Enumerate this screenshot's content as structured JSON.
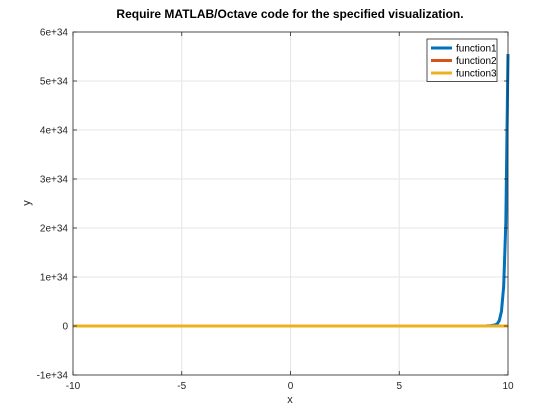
{
  "chart_data": {
    "type": "line",
    "title": "Require MATLAB/Octave code for the specified visualization.",
    "xlabel": "x",
    "ylabel": "y",
    "xlim": [
      -10,
      10
    ],
    "ylim": [
      -1e+34,
      6e+34
    ],
    "x_ticks": [
      -10,
      -5,
      0,
      5,
      10
    ],
    "x_tick_labels": [
      "-10",
      "-5",
      "0",
      "5",
      "10"
    ],
    "y_ticks": [
      -1e+34,
      0,
      1e+34,
      2e+34,
      3e+34,
      4e+34,
      5e+34,
      6e+34
    ],
    "y_tick_labels": [
      "-1e+34",
      "0",
      "1e+34",
      "2e+34",
      "3e+34",
      "4e+34",
      "5e+34",
      "6e+34"
    ],
    "grid": true,
    "legend_position": "top-right",
    "series": [
      {
        "name": "function1",
        "color": "#0072BD",
        "x": [
          -10,
          -5,
          0,
          5,
          8,
          9,
          9.2,
          9.4,
          9.5,
          9.6,
          9.7,
          9.8,
          9.9,
          10
        ],
        "y": [
          0,
          0,
          0,
          0,
          1e+30,
          2.5e+31,
          7e+31,
          2.2e+32,
          4e+32,
          1.1e+33,
          3e+33,
          8e+33,
          2.1e+34,
          5.55e+34
        ]
      },
      {
        "name": "function2",
        "color": "#D95319",
        "x": [
          -10,
          10
        ],
        "y": [
          0,
          0
        ]
      },
      {
        "name": "function3",
        "color": "#EDB120",
        "x": [
          -10,
          10
        ],
        "y": [
          0,
          0
        ]
      }
    ]
  }
}
